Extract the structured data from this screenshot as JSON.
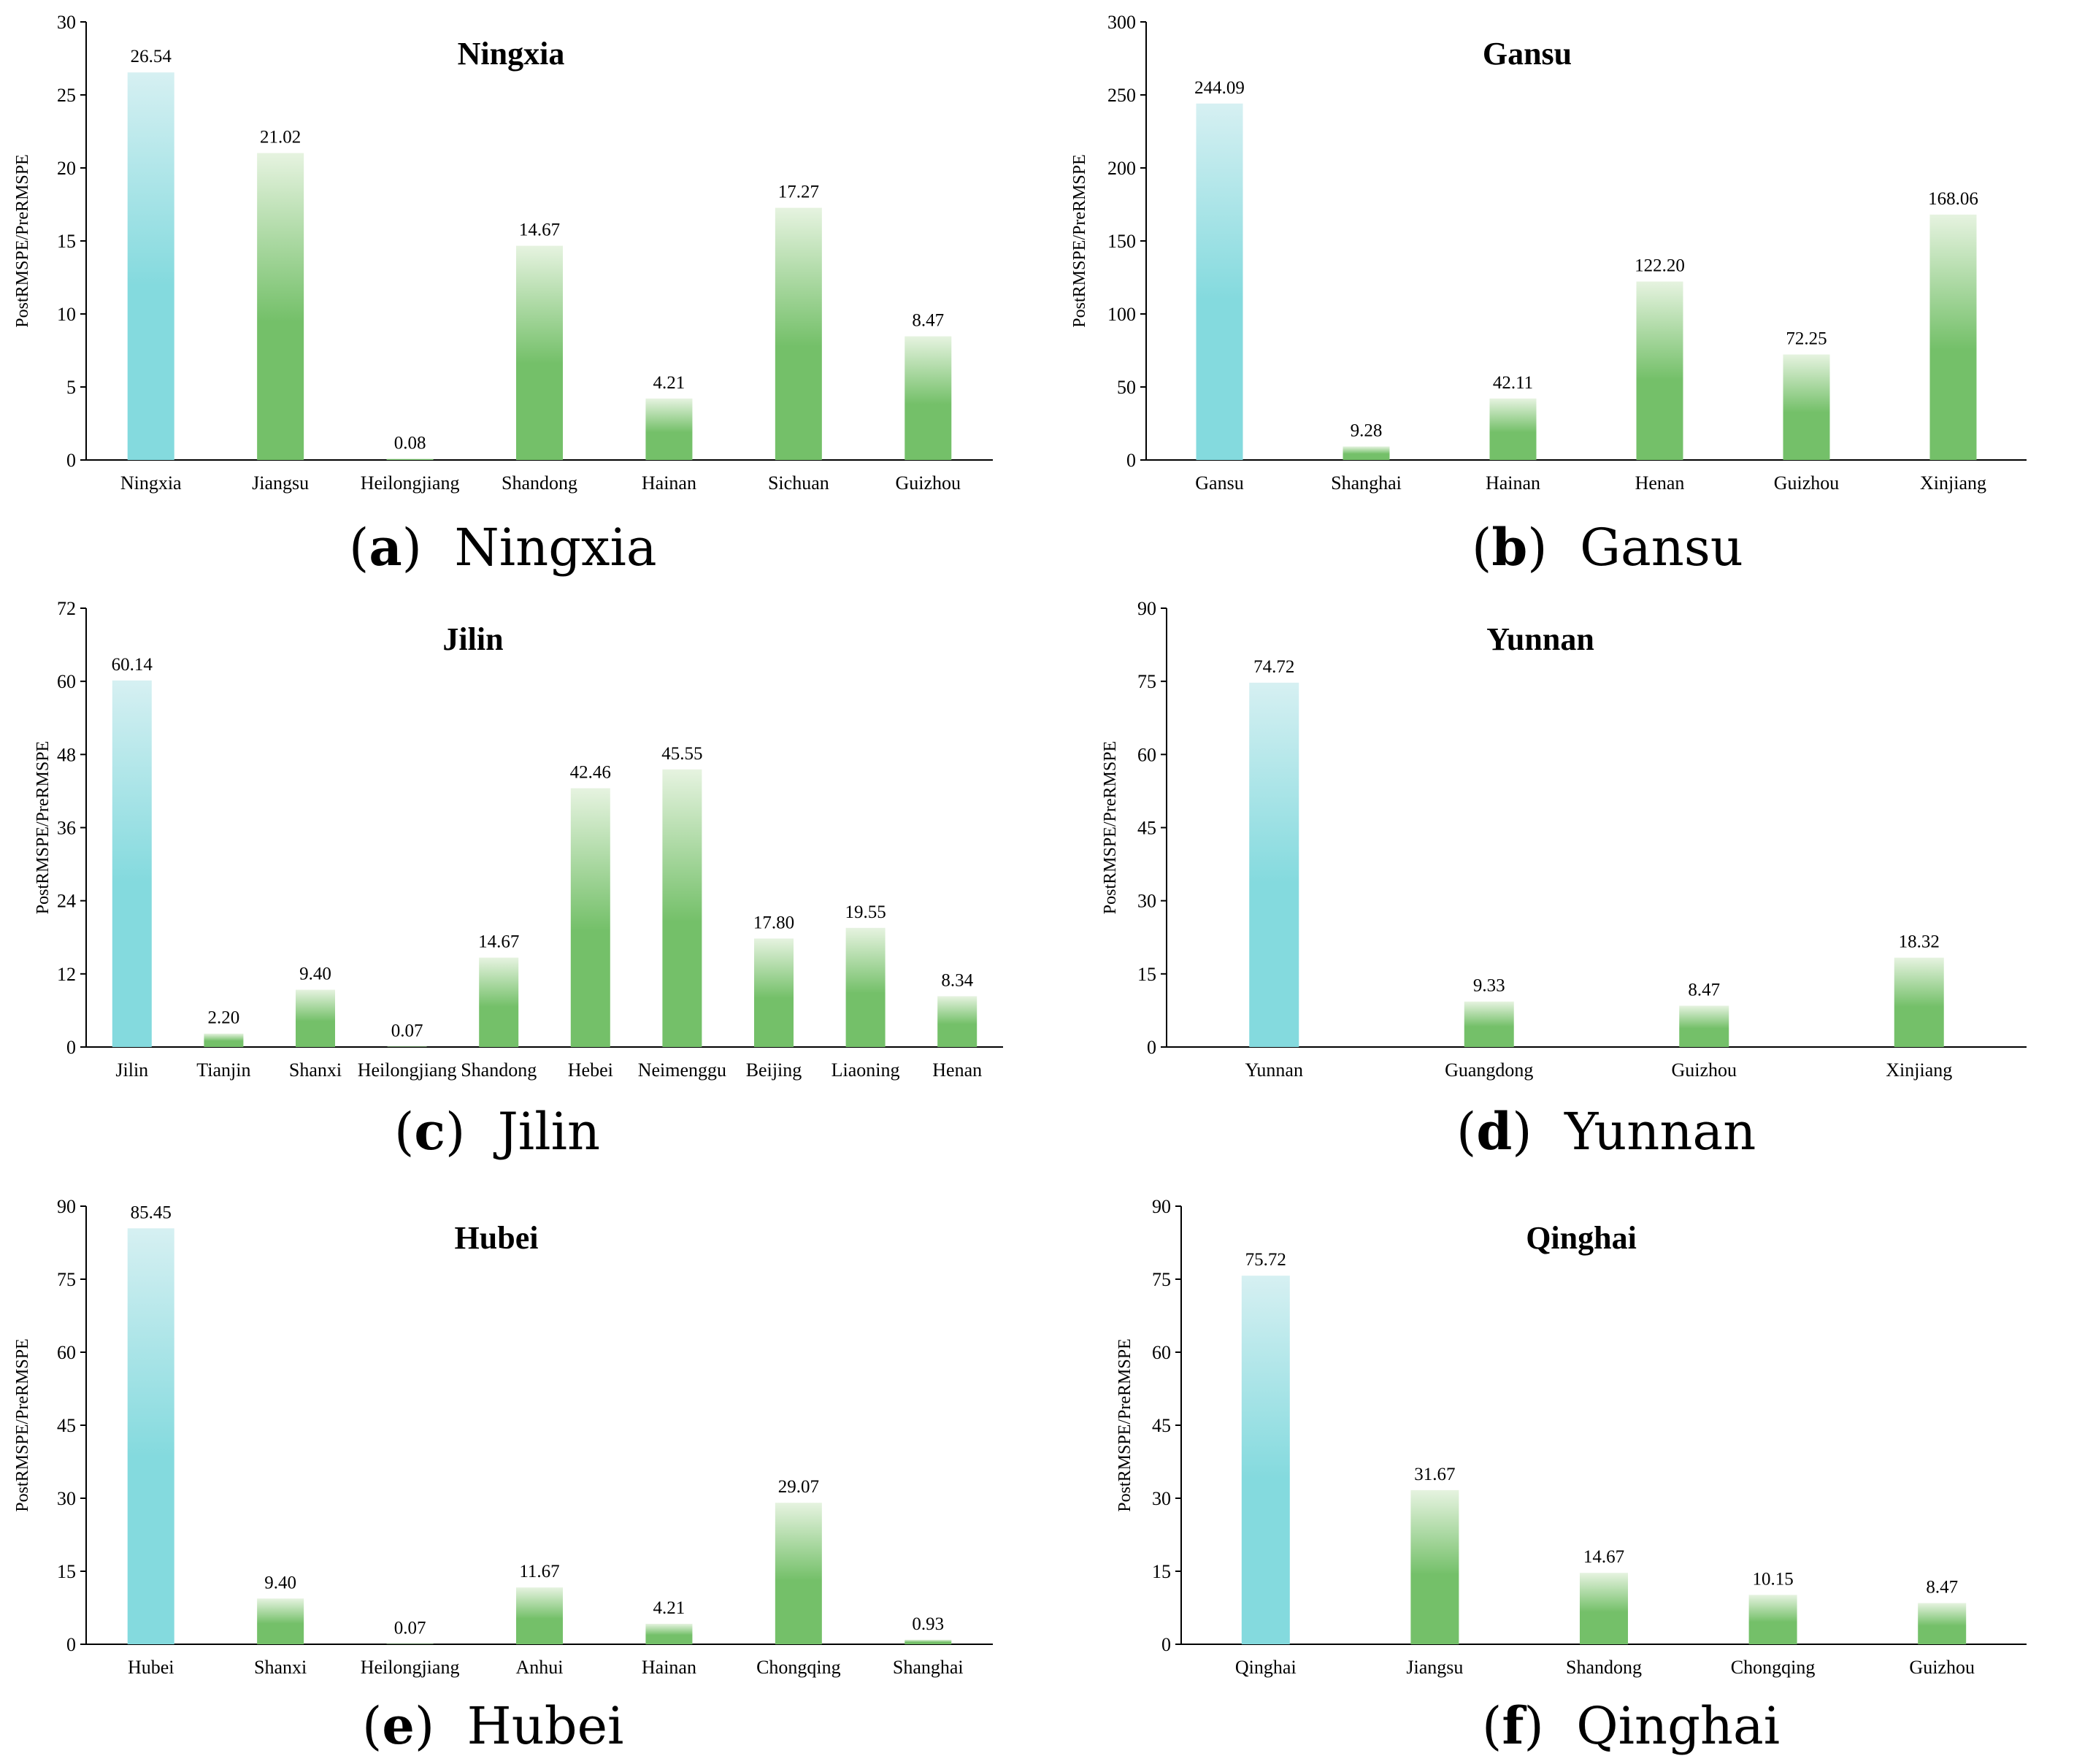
{
  "colors": {
    "highlight_top": "#d6f0f2",
    "highlight_bottom": "#84dade",
    "bar_top": "#e6f3e0",
    "bar_bottom": "#74c069",
    "axis": "#000000"
  },
  "chart_data": [
    {
      "panel_id": "a",
      "type": "bar",
      "title": "Ningxia",
      "caption_letter": "a",
      "caption_text": "Ningxia",
      "ylabel": "PostRMSPE/PreRMSPE",
      "xlabel": "",
      "ylim": [
        0,
        30
      ],
      "yticks": [
        0,
        5,
        10,
        15,
        20,
        25,
        30
      ],
      "categories": [
        "Ningxia",
        "Jiangsu",
        "Heilongjiang",
        "Shandong",
        "Hainan",
        "Sichuan",
        "Guizhou"
      ],
      "values": [
        26.54,
        21.02,
        0.08,
        14.67,
        4.21,
        17.27,
        8.47
      ],
      "value_labels": [
        "26.54",
        "21.02",
        "0.08",
        "14.67",
        "4.21",
        "17.27",
        "8.47"
      ],
      "highlight_index": 0
    },
    {
      "panel_id": "b",
      "type": "bar",
      "title": "Gansu",
      "caption_letter": "b",
      "caption_text": "Gansu",
      "ylabel": "PostRMSPE/PreRMSPE",
      "xlabel": "",
      "ylim": [
        0,
        300
      ],
      "yticks": [
        0,
        50,
        100,
        150,
        200,
        250,
        300
      ],
      "categories": [
        "Gansu",
        "Shanghai",
        "Hainan",
        "Henan",
        "Guizhou",
        "Xinjiang"
      ],
      "values": [
        244.09,
        9.28,
        42.11,
        122.2,
        72.25,
        168.06
      ],
      "value_labels": [
        "244.09",
        "9.28",
        "42.11",
        "122.20",
        "72.25",
        "168.06"
      ],
      "highlight_index": 0
    },
    {
      "panel_id": "c",
      "type": "bar",
      "title": "Jilin",
      "caption_letter": "c",
      "caption_text": "Jilin",
      "ylabel": "PostRMSPE/PreRMSPE",
      "xlabel": "",
      "ylim": [
        0,
        72
      ],
      "yticks": [
        0,
        12,
        24,
        36,
        48,
        60,
        72
      ],
      "categories": [
        "Jilin",
        "Tianjin",
        "Shanxi",
        "Heilongjiang",
        "Shandong",
        "Hebei",
        "Neimenggu",
        "Beijing",
        "Liaoning",
        "Henan"
      ],
      "values": [
        60.14,
        2.2,
        9.4,
        0.07,
        14.67,
        42.46,
        45.55,
        17.8,
        19.55,
        8.34
      ],
      "value_labels": [
        "60.14",
        "2.20",
        "9.40",
        "0.07",
        "14.67",
        "42.46",
        "45.55",
        "17.80",
        "19.55",
        "8.34"
      ],
      "highlight_index": 0
    },
    {
      "panel_id": "d",
      "type": "bar",
      "title": "Yunnan",
      "caption_letter": "d",
      "caption_text": "Yunnan",
      "ylabel": "PostRMSPE/PreRMSPE",
      "xlabel": "",
      "ylim": [
        0,
        90
      ],
      "yticks": [
        0,
        15,
        30,
        45,
        60,
        75,
        90
      ],
      "categories": [
        "Yunnan",
        "Guangdong",
        "Guizhou",
        "Xinjiang"
      ],
      "values": [
        74.72,
        9.33,
        8.47,
        18.32
      ],
      "value_labels": [
        "74.72",
        "9.33",
        "8.47",
        "18.32"
      ],
      "highlight_index": 0
    },
    {
      "panel_id": "e",
      "type": "bar",
      "title": "Hubei",
      "caption_letter": "e",
      "caption_text": "Hubei",
      "ylabel": "PostRMSPE/PreRMSPE",
      "xlabel": "",
      "ylim": [
        0,
        90
      ],
      "yticks": [
        0,
        15,
        30,
        45,
        60,
        75,
        90
      ],
      "categories": [
        "Hubei",
        "Shanxi",
        "Heilongjiang",
        "Anhui",
        "Hainan",
        "Chongqing",
        "Shanghai"
      ],
      "values": [
        85.45,
        9.4,
        0.07,
        11.67,
        4.21,
        29.07,
        0.93
      ],
      "value_labels": [
        "85.45",
        "9.40",
        "0.07",
        "11.67",
        "4.21",
        "29.07",
        "0.93"
      ],
      "highlight_index": 0
    },
    {
      "panel_id": "f",
      "type": "bar",
      "title": "Qinghai",
      "caption_letter": "f",
      "caption_text": "Qinghai",
      "ylabel": "PostRMSPE/PreRMSPE",
      "xlabel": "",
      "ylim": [
        0,
        90
      ],
      "yticks": [
        0,
        15,
        30,
        45,
        60,
        75,
        90
      ],
      "categories": [
        "Qinghai",
        "Jiangsu",
        "Shandong",
        "Chongqing",
        "Guizhou"
      ],
      "values": [
        75.72,
        31.67,
        14.67,
        10.15,
        8.47
      ],
      "value_labels": [
        "75.72",
        "31.67",
        "14.67",
        "10.15",
        "8.47"
      ],
      "highlight_index": 0
    }
  ]
}
